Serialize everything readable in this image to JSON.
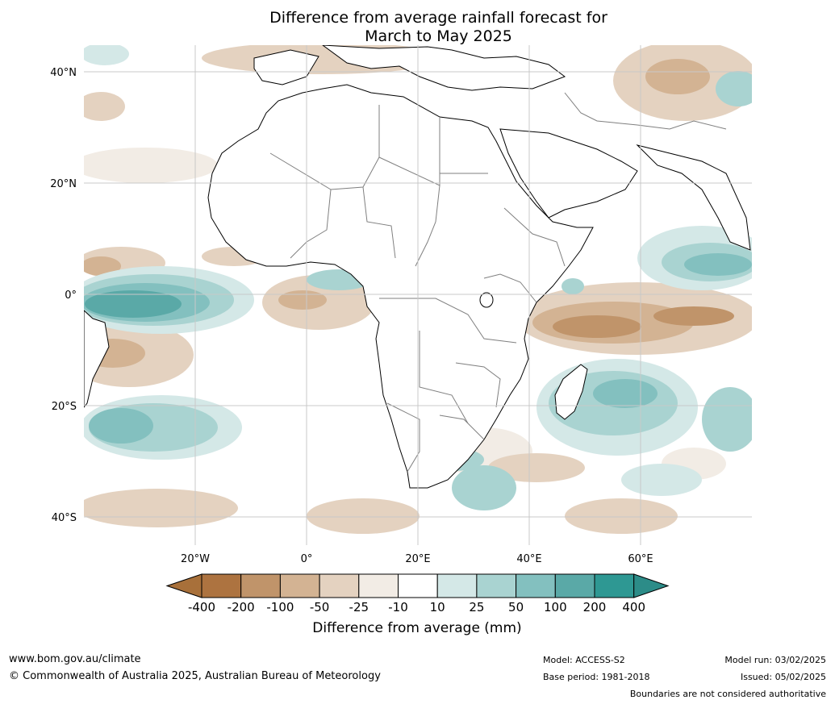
{
  "title_line1": "Difference from average rainfall forecast for",
  "title_line2": "March to May 2025",
  "map": {
    "lon_labels": [
      "20°W",
      "0°",
      "20°E",
      "40°E",
      "60°E"
    ],
    "lat_labels": [
      "40°N",
      "20°N",
      "0°",
      "20°S",
      "40°S"
    ]
  },
  "colorbar": {
    "title": "Difference from average (mm)",
    "labels": [
      "-400",
      "-200",
      "-100",
      "-50",
      "-25",
      "-10",
      "10",
      "25",
      "50",
      "100",
      "200",
      "400"
    ],
    "colors": [
      "#a8703a",
      "#ad7340",
      "#c0946a",
      "#d3b393",
      "#e4d2c0",
      "#f2ece5",
      "#ffffff",
      "#d4e8e7",
      "#a9d3d1",
      "#83c0bf",
      "#5aa9a7",
      "#2e9893",
      "#2c8c88"
    ]
  },
  "footer": {
    "site": "www.bom.gov.au/climate",
    "copyright": "© Commonwealth of Australia 2025, Australian Bureau of Meteorology",
    "model": "Model: ACCESS-S2",
    "base_period": "Base period: 1981-2018",
    "model_run": "Model run: 03/02/2025",
    "issued": "Issued: 05/02/2025",
    "boundaries": "Boundaries are not considered authoritative"
  }
}
